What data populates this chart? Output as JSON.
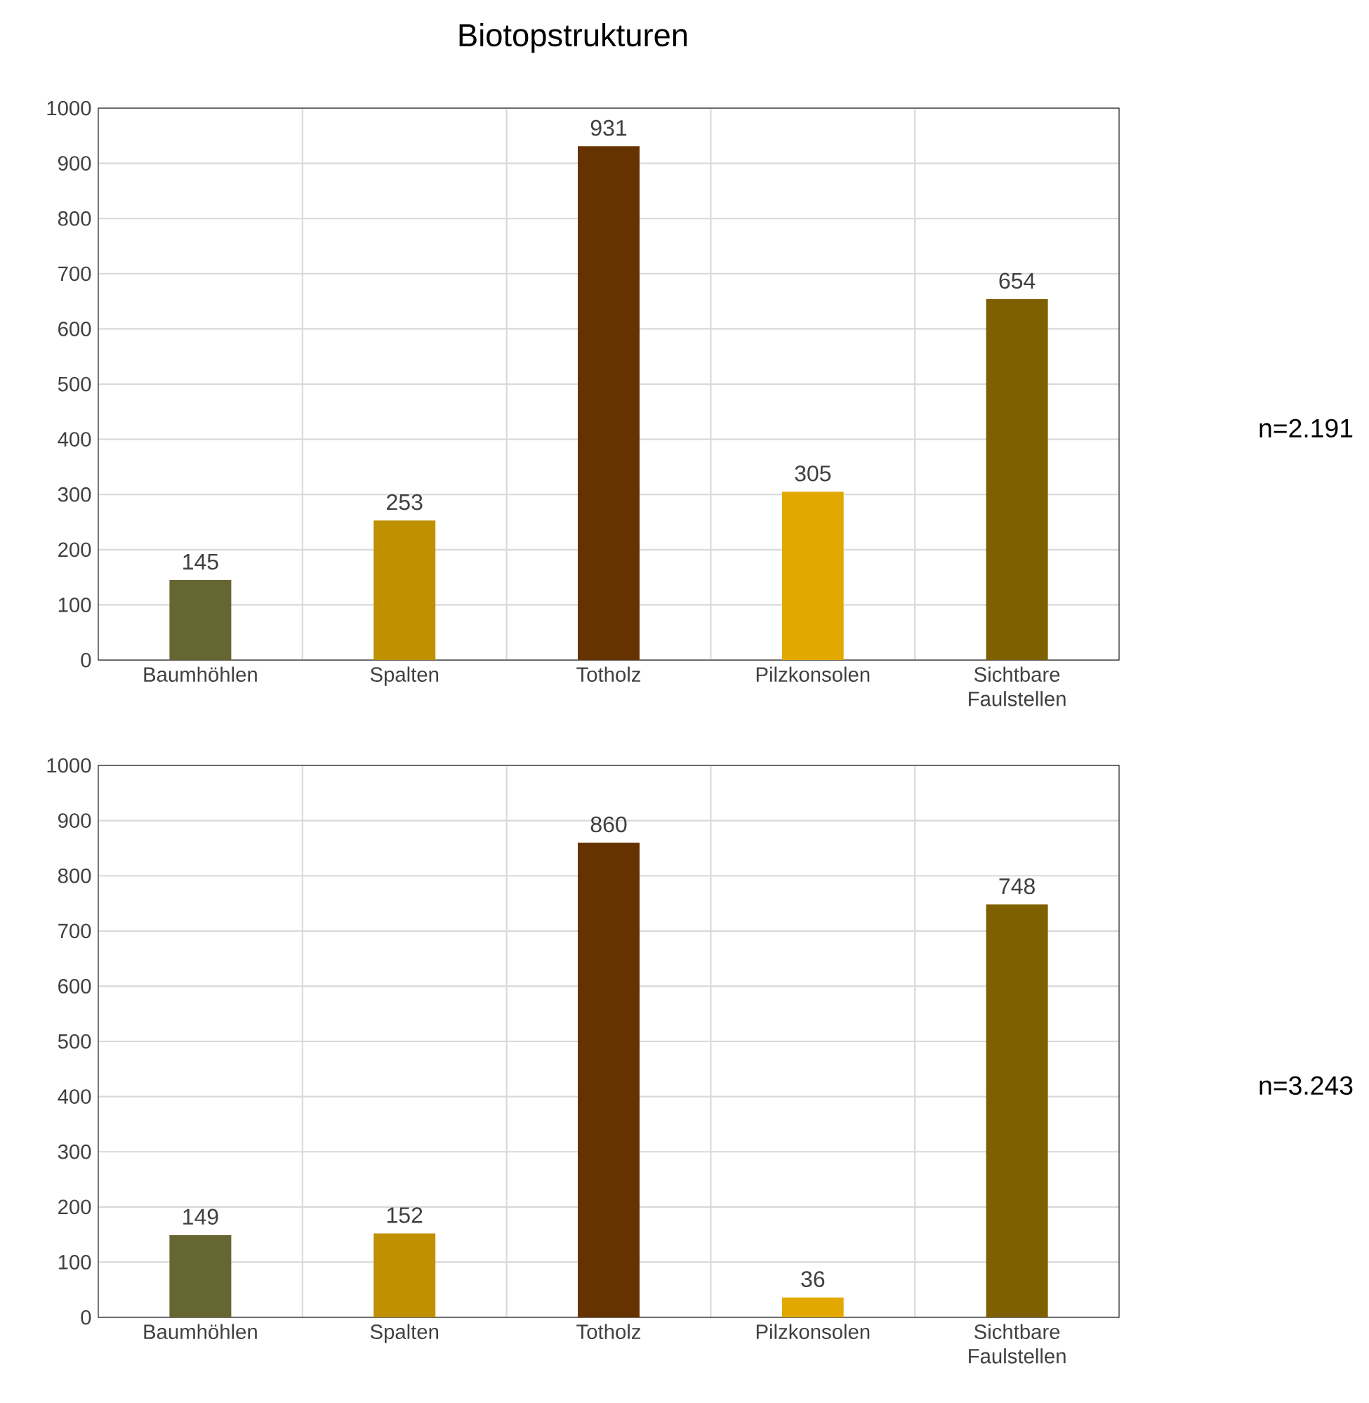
{
  "chart_data": [
    {
      "type": "bar",
      "title": "Biotopstrukturen",
      "categories": [
        "Baumhöhlen",
        "Spalten",
        "Totholz",
        "Pilzkonsolen",
        "Sichtbare Faulstellen"
      ],
      "values": [
        145,
        253,
        931,
        305,
        654
      ],
      "colors": [
        "#666633",
        "#bf9000",
        "#663300",
        "#e2a800",
        "#7f6000"
      ],
      "ylim": [
        0,
        1000
      ],
      "yticks": [
        0,
        100,
        200,
        300,
        400,
        500,
        600,
        700,
        800,
        900,
        1000
      ],
      "grid": true,
      "data_labels": true,
      "annotations": [
        "n=2.191"
      ]
    },
    {
      "type": "bar",
      "categories": [
        "Baumhöhlen",
        "Spalten",
        "Totholz",
        "Pilzkonsolen",
        "Sichtbare Faulstellen"
      ],
      "values": [
        149,
        152,
        860,
        36,
        748
      ],
      "colors": [
        "#666633",
        "#bf9000",
        "#663300",
        "#e2a800",
        "#7f6000"
      ],
      "ylim": [
        0,
        1000
      ],
      "yticks": [
        0,
        100,
        200,
        300,
        400,
        500,
        600,
        700,
        800,
        900,
        1000
      ],
      "grid": true,
      "data_labels": true,
      "annotations": [
        "n=3.243"
      ]
    }
  ]
}
